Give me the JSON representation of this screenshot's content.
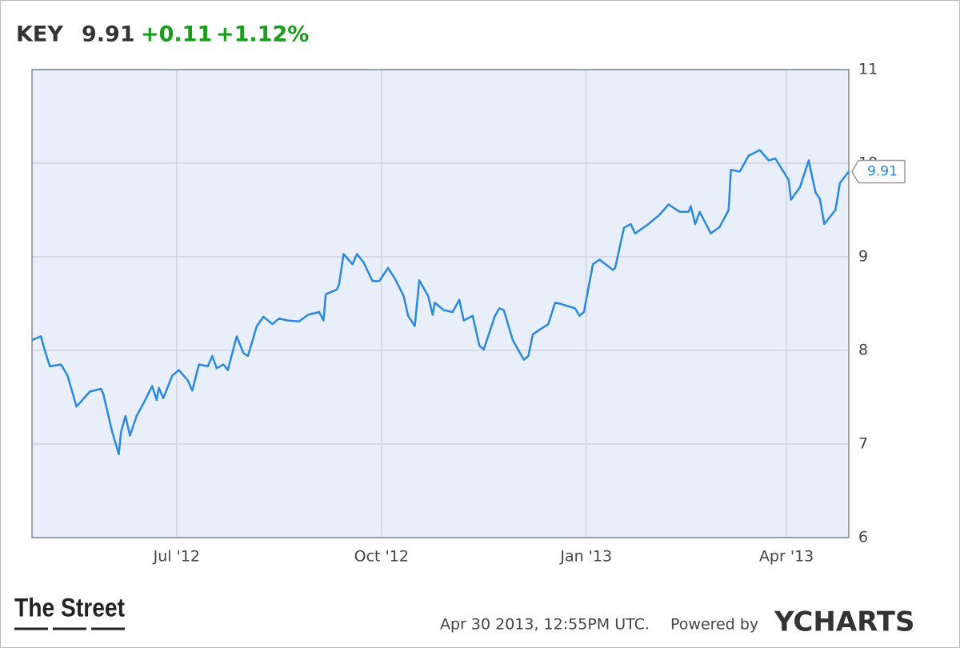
{
  "header": {
    "ticker": "KEY",
    "price": "9.91",
    "change": "+0.11",
    "change_pct": "+1.12%"
  },
  "chart_data": {
    "type": "line",
    "x": [
      0,
      4,
      6,
      8,
      13,
      16,
      20,
      26,
      31,
      32,
      36,
      39,
      40,
      42,
      44,
      47,
      50,
      54,
      56,
      57,
      59,
      63,
      66,
      70,
      72,
      75,
      79,
      81,
      83,
      86,
      88,
      92,
      95,
      97,
      101,
      104,
      108,
      111,
      115,
      120,
      124,
      129,
      131,
      132,
      137,
      138,
      140,
      144,
      146,
      149,
      153,
      156,
      160,
      163,
      167,
      169,
      172,
      174,
      178,
      180,
      181,
      185,
      189,
      192,
      194,
      198,
      201,
      203,
      208,
      210,
      212,
      216,
      221,
      223,
      225,
      228,
      232,
      235,
      237,
      244,
      246,
      248,
      252,
      255,
      261,
      262,
      266,
      269,
      271,
      277,
      282,
      286,
      291,
      295,
      296,
      298,
      300,
      305,
      309,
      313,
      314,
      318,
      322,
      327,
      331,
      334,
      340,
      341,
      345,
      349,
      352,
      354,
      356,
      359,
      361,
      363,
      367
    ],
    "series": [
      {
        "name": "KEY",
        "color": "#2a88e0",
        "values": [
          8.11,
          8.15,
          7.98,
          7.83,
          7.85,
          7.73,
          7.4,
          7.56,
          7.59,
          7.54,
          7.13,
          6.89,
          7.13,
          7.3,
          7.09,
          7.3,
          7.43,
          7.62,
          7.47,
          7.6,
          7.49,
          7.73,
          7.79,
          7.68,
          7.57,
          7.85,
          7.83,
          7.94,
          7.81,
          7.85,
          7.79,
          8.15,
          7.97,
          7.94,
          8.26,
          8.36,
          8.28,
          8.34,
          8.32,
          8.31,
          8.38,
          8.41,
          8.32,
          8.6,
          8.65,
          8.71,
          9.03,
          8.92,
          9.03,
          8.94,
          8.74,
          8.74,
          8.88,
          8.77,
          8.58,
          8.37,
          8.26,
          8.75,
          8.58,
          8.38,
          8.51,
          8.43,
          8.41,
          8.54,
          8.32,
          8.37,
          8.05,
          8.01,
          8.37,
          8.45,
          8.43,
          8.11,
          7.9,
          7.94,
          8.17,
          8.22,
          8.28,
          8.51,
          8.5,
          8.45,
          8.37,
          8.41,
          8.92,
          8.97,
          8.86,
          8.88,
          9.31,
          9.35,
          9.25,
          9.35,
          9.45,
          9.56,
          9.48,
          9.48,
          9.54,
          9.35,
          9.48,
          9.25,
          9.32,
          9.5,
          9.93,
          9.91,
          10.08,
          10.14,
          10.03,
          10.05,
          9.82,
          9.61,
          9.74,
          10.03,
          9.69,
          9.62,
          9.35,
          9.44,
          9.5,
          9.79,
          9.91
        ]
      }
    ],
    "xlim": [
      0,
      367
    ],
    "xticks": [
      {
        "value": 65,
        "label": "Jul '12"
      },
      {
        "value": 157,
        "label": "Oct '12"
      },
      {
        "value": 249,
        "label": "Jan '13"
      },
      {
        "value": 339,
        "label": "Apr '13"
      }
    ],
    "ylim": [
      6,
      11
    ],
    "yticks": [
      6,
      7,
      8,
      9,
      10,
      11
    ],
    "grid": true,
    "background": "#e8eefa"
  },
  "footer": {
    "brand": "The Street",
    "timestamp": "Apr 30 2013, 12:55PM UTC.",
    "powered": "Powered by",
    "provider": "YCHARTS"
  }
}
